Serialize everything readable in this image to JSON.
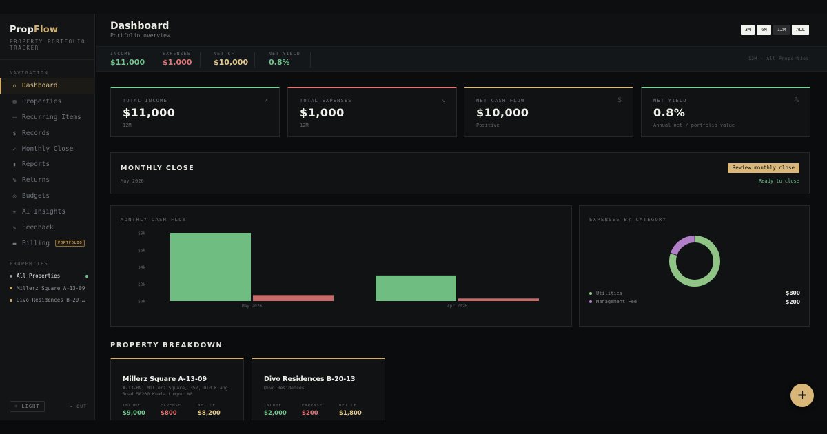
{
  "brand": {
    "name_a": "Prop",
    "name_b": "Flow",
    "subtitle": "PROPERTY PORTFOLIO TRACKER"
  },
  "sidebar": {
    "nav_label": "NAVIGATION",
    "items": [
      {
        "label": "Dashboard",
        "icon": "home-icon",
        "glyph": "⌂",
        "active": true
      },
      {
        "label": "Properties",
        "icon": "building-icon",
        "glyph": "▤"
      },
      {
        "label": "Recurring Items",
        "icon": "calendar-icon",
        "glyph": "▭"
      },
      {
        "label": "Records",
        "icon": "dollar-icon",
        "glyph": "$"
      },
      {
        "label": "Monthly Close",
        "icon": "check-circle-icon",
        "glyph": "✓"
      },
      {
        "label": "Reports",
        "icon": "bar-chart-icon",
        "glyph": "▮"
      },
      {
        "label": "Returns",
        "icon": "percent-icon",
        "glyph": "%"
      },
      {
        "label": "Budgets",
        "icon": "target-icon",
        "glyph": "◎"
      },
      {
        "label": "AI Insights",
        "icon": "sparkle-icon",
        "glyph": "✳"
      },
      {
        "label": "Feedback",
        "icon": "edit-icon",
        "glyph": "✎"
      },
      {
        "label": "Billing",
        "icon": "card-icon",
        "glyph": "▬",
        "badge": "PORTFOLIO"
      }
    ],
    "properties_label": "PROPERTIES",
    "properties": [
      {
        "label": "All Properties",
        "color": "#8a8f94",
        "active": true
      },
      {
        "label": "Millerz Square A-13-09",
        "color": "#cfae70"
      },
      {
        "label": "Divo Residences B-20-…",
        "color": "#cfae70"
      }
    ],
    "light_label": "☼ LIGHT",
    "out_label": "⇥ OUT"
  },
  "header": {
    "title": "Dashboard",
    "subtitle": "Portfolio overview",
    "ranges": [
      {
        "label": "3M",
        "selected": false
      },
      {
        "label": "6M",
        "selected": false
      },
      {
        "label": "12M",
        "selected": true
      },
      {
        "label": "ALL",
        "selected": false
      }
    ]
  },
  "kpi_strip": {
    "items": [
      {
        "label": "INCOME",
        "value": "$11,000",
        "tone": "green"
      },
      {
        "label": "EXPENSES",
        "value": "$1,000",
        "tone": "red"
      },
      {
        "label": "NET CF",
        "value": "$10,000",
        "tone": "gold"
      },
      {
        "label": "NET YIELD",
        "value": "0.8%",
        "tone": "green"
      }
    ],
    "right_text": "12M · All Properties"
  },
  "stats": [
    {
      "label": "TOTAL INCOME",
      "value": "$11,000",
      "sub": "12M",
      "icon": "trend-up-icon",
      "glyph": "↗",
      "accent": "#7fd09a"
    },
    {
      "label": "TOTAL EXPENSES",
      "value": "$1,000",
      "sub": "12M",
      "icon": "trend-down-icon",
      "glyph": "↘",
      "accent": "#e07777"
    },
    {
      "label": "NET CASH FLOW",
      "value": "$10,000",
      "sub": "Positive",
      "icon": "dollar-icon",
      "glyph": "$",
      "accent": "#d9bd82"
    },
    {
      "label": "NET YIELD",
      "value": "0.8%",
      "sub": "Annual net / portfolio value",
      "icon": "percent-icon",
      "glyph": "%",
      "accent": "#7fd09a"
    }
  ],
  "monthly_close": {
    "title": "MONTHLY CLOSE",
    "date": "May 2026",
    "button": "Review monthly close",
    "status": "Ready to close"
  },
  "cash_flow_panel": {
    "label": "MONTHLY CASH FLOW"
  },
  "expenses_panel": {
    "label": "EXPENSES BY CATEGORY"
  },
  "chart_data": [
    {
      "type": "bar",
      "categories": [
        "May 2026",
        "Apr 2026"
      ],
      "series": [
        {
          "values": [
            8000,
            3000
          ],
          "color": "#6fbd80"
        },
        {
          "values": [
            700,
            300
          ],
          "color": "#c96a6a"
        }
      ],
      "yticks": [
        "$8k",
        "$6k",
        "$4k",
        "$2k",
        "$0k"
      ],
      "ylim": [
        0,
        8000
      ],
      "grid": false
    },
    {
      "type": "pie",
      "donut": true,
      "labels": [
        "Utilities",
        "Management Fee"
      ],
      "values": [
        800,
        200
      ],
      "value_labels": [
        "$800",
        "$200"
      ],
      "colors": [
        "#8fc486",
        "#b17fc8"
      ]
    }
  ],
  "breakdown": {
    "title": "PROPERTY BREAKDOWN",
    "cards": [
      {
        "name": "Millerz Square A-13-09",
        "address": "A-13-09, Millerz Square, 357, Old Klang Road 58200 Kuala Lumpur WP",
        "income_label": "INCOME",
        "income": "$9,000",
        "expense_label": "EXPENSE",
        "expense": "$800",
        "netcf_label": "NET CF",
        "netcf": "$8,200"
      },
      {
        "name": "Divo Residences B-20-13",
        "address": "Divo Residences",
        "income_label": "INCOME",
        "income": "$2,000",
        "expense_label": "EXPENSE",
        "expense": "$200",
        "netcf_label": "NET CF",
        "netcf": "$1,800"
      }
    ]
  },
  "fab": {
    "label": "+",
    "icon": "plus-icon"
  }
}
